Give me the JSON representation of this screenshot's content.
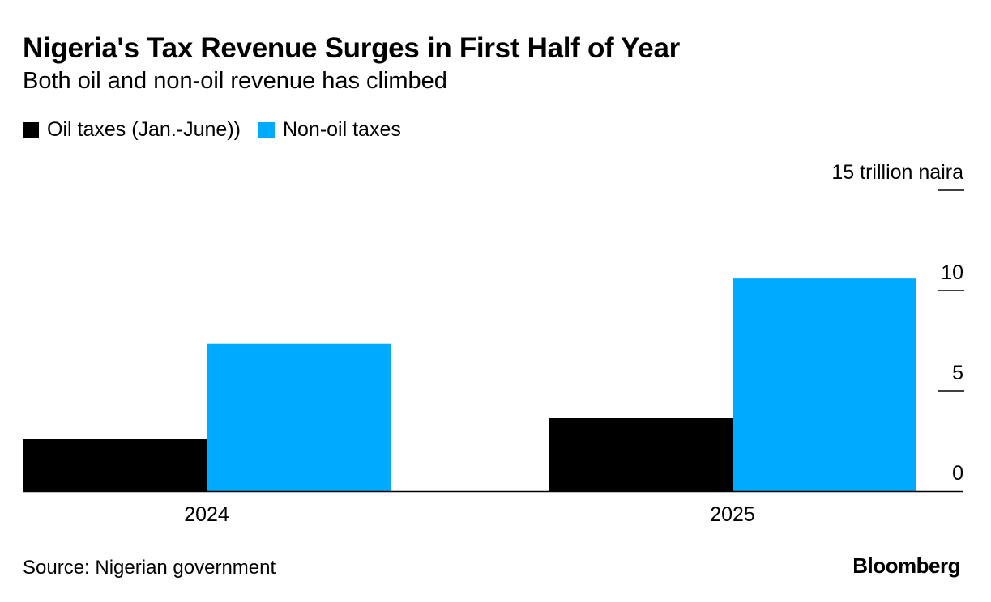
{
  "title": "Nigeria's Tax Revenue Surges in First Half of Year",
  "subtitle": "Both oil and non-oil revenue has climbed",
  "source": "Source: Nigerian government",
  "brand": "Bloomberg",
  "colors": {
    "oil": "#000000",
    "non_oil": "#00aaff",
    "axis": "#000000"
  },
  "chart_data": {
    "type": "bar",
    "categories": [
      "2024",
      "2025"
    ],
    "series": [
      {
        "name": "Oil taxes (Jan.-June))",
        "color": "#000000",
        "values": [
          2.6,
          3.65
        ]
      },
      {
        "name": "Non-oil taxes",
        "color": "#00aaff",
        "values": [
          7.35,
          10.6
        ]
      }
    ],
    "ylim": [
      0,
      15
    ],
    "yticks": [
      0,
      5,
      10,
      15
    ],
    "ytick_labels": [
      "0",
      "5",
      "10",
      "15 trillion naira"
    ],
    "legend_placement": "top-left",
    "grid": false,
    "xlabel": "",
    "ylabel": ""
  }
}
